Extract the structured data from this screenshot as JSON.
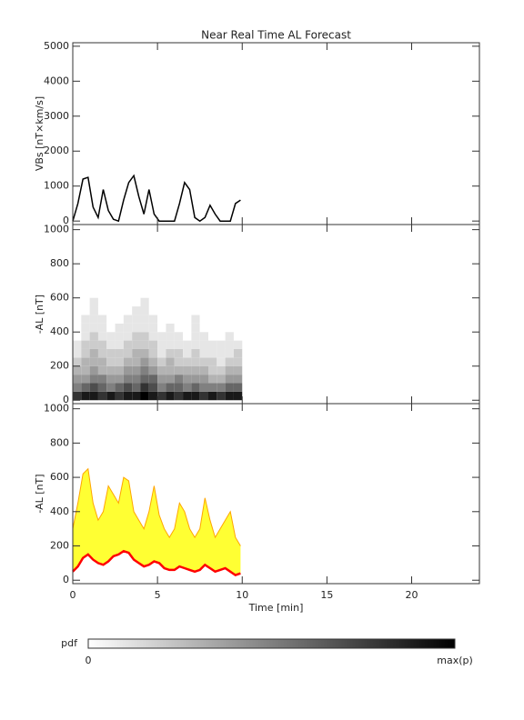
{
  "chart_data": [
    {
      "type": "line",
      "title": "Near Real Time AL Forecast",
      "ylabel": "VBs [nT×km/s]",
      "color": "#000000",
      "x": [
        0,
        0.3,
        0.6,
        0.9,
        1.2,
        1.5,
        1.8,
        2.1,
        2.4,
        2.7,
        3.0,
        3.3,
        3.6,
        3.9,
        4.2,
        4.5,
        4.8,
        5.1,
        5.4,
        5.7,
        6.0,
        6.3,
        6.6,
        6.9,
        7.2,
        7.5,
        7.8,
        8.1,
        8.4,
        8.7,
        9.0,
        9.3,
        9.6,
        9.9
      ],
      "values": [
        0,
        500,
        1200,
        1250,
        400,
        100,
        900,
        300,
        50,
        0,
        600,
        1100,
        1300,
        700,
        200,
        900,
        200,
        0,
        0,
        0,
        0,
        500,
        1100,
        900,
        100,
        0,
        100,
        450,
        200,
        0,
        0,
        0,
        500,
        600
      ],
      "xlim": [
        0,
        24
      ],
      "xticks": [
        0,
        5,
        10,
        15,
        20
      ],
      "ylim": [
        -100,
        5100
      ],
      "yticks": [
        0,
        1000,
        2000,
        3000,
        4000,
        5000
      ],
      "show_xtick_labels": false
    },
    {
      "type": "heatmap",
      "ylabel": "-AL [nT]",
      "xbins": [
        0,
        0.5,
        1,
        1.5,
        2,
        2.5,
        3,
        3.5,
        4,
        4.5,
        5,
        5.5,
        6,
        6.5,
        7,
        7.5,
        8,
        8.5,
        9,
        9.5,
        10
      ],
      "ybins": [
        0,
        50,
        100,
        150,
        200,
        250,
        300,
        350,
        400,
        450,
        500,
        550,
        600
      ],
      "values": [
        [
          0.8,
          0.5,
          0.4,
          0.3,
          0.2,
          0.1,
          0.1,
          0,
          0,
          0,
          0,
          0
        ],
        [
          0.9,
          0.6,
          0.4,
          0.3,
          0.3,
          0.2,
          0.2,
          0.1,
          0.1,
          0.1,
          0,
          0
        ],
        [
          0.9,
          0.7,
          0.5,
          0.4,
          0.3,
          0.3,
          0.2,
          0.2,
          0.1,
          0.1,
          0.1,
          0.1
        ],
        [
          0.8,
          0.6,
          0.5,
          0.3,
          0.3,
          0.2,
          0.2,
          0.1,
          0.1,
          0.1,
          0,
          0
        ],
        [
          0.9,
          0.5,
          0.4,
          0.3,
          0.2,
          0.2,
          0.1,
          0.1,
          0,
          0,
          0,
          0
        ],
        [
          0.8,
          0.6,
          0.4,
          0.3,
          0.2,
          0.2,
          0.1,
          0.1,
          0.1,
          0,
          0,
          0
        ],
        [
          0.9,
          0.7,
          0.5,
          0.4,
          0.3,
          0.2,
          0.2,
          0.1,
          0.1,
          0.1,
          0,
          0
        ],
        [
          0.9,
          0.6,
          0.5,
          0.4,
          0.3,
          0.3,
          0.2,
          0.2,
          0.1,
          0.1,
          0.1,
          0
        ],
        [
          1,
          0.8,
          0.6,
          0.5,
          0.4,
          0.3,
          0.2,
          0.2,
          0.1,
          0.1,
          0.1,
          0.1
        ],
        [
          0.9,
          0.7,
          0.6,
          0.4,
          0.3,
          0.2,
          0.2,
          0.1,
          0.1,
          0.1,
          0,
          0
        ],
        [
          0.8,
          0.5,
          0.4,
          0.3,
          0.2,
          0.1,
          0.1,
          0.1,
          0,
          0,
          0,
          0
        ],
        [
          0.9,
          0.6,
          0.4,
          0.3,
          0.3,
          0.2,
          0.1,
          0.1,
          0.1,
          0,
          0,
          0
        ],
        [
          0.8,
          0.6,
          0.5,
          0.3,
          0.2,
          0.2,
          0.1,
          0.1,
          0,
          0,
          0,
          0
        ],
        [
          0.9,
          0.5,
          0.4,
          0.3,
          0.2,
          0.1,
          0.1,
          0,
          0,
          0,
          0,
          0
        ],
        [
          0.9,
          0.6,
          0.4,
          0.3,
          0.2,
          0.2,
          0.1,
          0.1,
          0.1,
          0.1,
          0,
          0
        ],
        [
          0.8,
          0.5,
          0.4,
          0.3,
          0.2,
          0.1,
          0.1,
          0.1,
          0,
          0,
          0,
          0
        ],
        [
          0.9,
          0.5,
          0.3,
          0.2,
          0.2,
          0.1,
          0.1,
          0,
          0,
          0,
          0,
          0
        ],
        [
          0.8,
          0.5,
          0.3,
          0.2,
          0.1,
          0.1,
          0.1,
          0,
          0,
          0,
          0,
          0
        ],
        [
          0.9,
          0.6,
          0.4,
          0.3,
          0.2,
          0.1,
          0.1,
          0.1,
          0,
          0,
          0,
          0
        ],
        [
          0.9,
          0.6,
          0.4,
          0.3,
          0.2,
          0.2,
          0.1,
          0,
          0,
          0,
          0,
          0
        ]
      ],
      "xlim": [
        0,
        24
      ],
      "xticks": [
        0,
        5,
        10,
        15,
        20
      ],
      "ylim": [
        -20,
        1030
      ],
      "yticks": [
        0,
        200,
        400,
        600,
        800,
        1000
      ],
      "show_xtick_labels": false
    },
    {
      "type": "band",
      "ylabel": "-AL [nT]",
      "xlabel": "Time [min]",
      "x": [
        0,
        0.3,
        0.6,
        0.9,
        1.2,
        1.5,
        1.8,
        2.1,
        2.4,
        2.7,
        3.0,
        3.3,
        3.6,
        3.9,
        4.2,
        4.5,
        4.8,
        5.1,
        5.4,
        5.7,
        6.0,
        6.3,
        6.6,
        6.9,
        7.2,
        7.5,
        7.8,
        8.1,
        8.4,
        8.7,
        9.0,
        9.3,
        9.6,
        9.9
      ],
      "series": [
        {
          "color": "#ffa500",
          "fill": "#ffff33",
          "values": [
            300,
            450,
            620,
            650,
            450,
            350,
            400,
            550,
            500,
            450,
            600,
            580,
            400,
            350,
            300,
            400,
            550,
            380,
            300,
            250,
            300,
            450,
            400,
            300,
            250,
            300,
            480,
            350,
            250,
            300,
            350,
            400,
            250,
            200
          ]
        },
        {
          "color": "#ff0000",
          "values": [
            50,
            80,
            130,
            150,
            120,
            100,
            90,
            110,
            140,
            150,
            170,
            160,
            120,
            100,
            80,
            90,
            110,
            100,
            70,
            60,
            60,
            80,
            70,
            60,
            50,
            60,
            90,
            70,
            50,
            60,
            70,
            50,
            30,
            40
          ]
        }
      ],
      "xlim": [
        0,
        24
      ],
      "xticks": [
        0,
        5,
        10,
        15,
        20
      ],
      "ylim": [
        -20,
        1030
      ],
      "yticks": [
        0,
        200,
        400,
        600,
        800,
        1000
      ],
      "show_xtick_labels": true
    }
  ],
  "colorbar": {
    "label": "pdf",
    "min_label": "0",
    "max_label": "max(p)"
  }
}
